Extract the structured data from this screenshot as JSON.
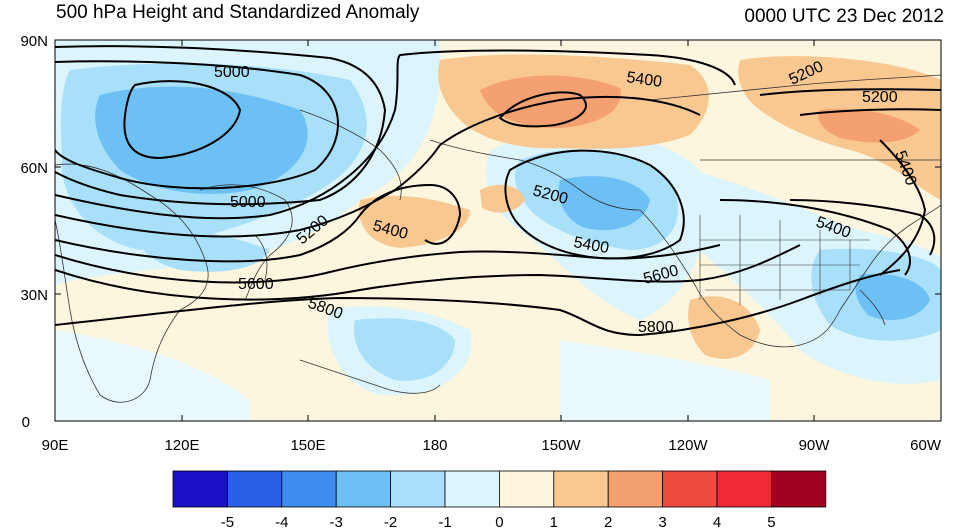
{
  "title": "500 hPa Height and Standardized Anomaly",
  "datetime": "0000 UTC 23 Dec 2012",
  "lat_ticks": [
    "90N",
    "60N",
    "30N",
    "0"
  ],
  "lon_ticks": [
    "90E",
    "120E",
    "150E",
    "180",
    "150W",
    "120W",
    "90W",
    "60W"
  ],
  "contour_labels": [
    "5000",
    "5000",
    "5200",
    "5400",
    "5400",
    "5200",
    "5400",
    "5600",
    "5800",
    "5800",
    "5600",
    "5200",
    "5200",
    "5400",
    "5400"
  ],
  "colorbar": {
    "tick_labels": [
      "-5",
      "-4",
      "-3",
      "-2",
      "-1",
      "0",
      "1",
      "2",
      "3",
      "4",
      "5"
    ],
    "colors": [
      "#1a10c8",
      "#2a5fe8",
      "#3f8cf0",
      "#6cc0f4",
      "#a8e0fa",
      "#dcf4fc",
      "#fdf5dc",
      "#f8c890",
      "#f4a070",
      "#f04a40",
      "#f02838",
      "#a00020"
    ]
  }
}
